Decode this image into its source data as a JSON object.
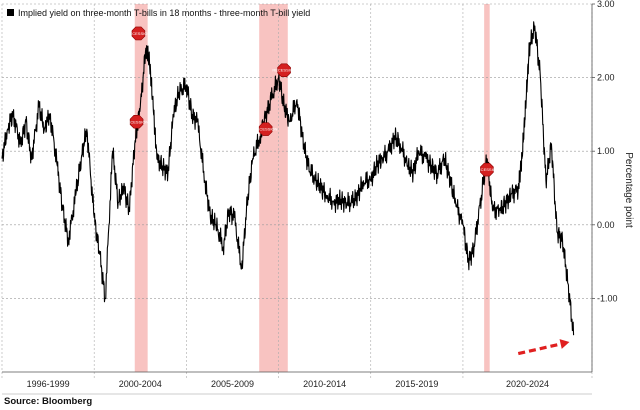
{
  "chart_data": {
    "type": "line",
    "title": "",
    "legend": "Implied yield on three-month T-bills in 18 months - three-month T-bill yield",
    "ylabel": "Percentage point",
    "xlabel": "",
    "source": "Source: Bloomberg",
    "xlim": [
      1994.0,
      2026.0
    ],
    "ylim": [
      -2.0,
      3.0
    ],
    "yticks": [
      -1.0,
      0.0,
      1.0,
      2.0,
      3.0
    ],
    "ytick_labels": [
      "-1.00",
      "0.00",
      "1.00",
      "2.00",
      "3.00"
    ],
    "period_boundaries": [
      1994.0,
      1999.0,
      2004.0,
      2009.0,
      2014.0,
      2019.0,
      2026.0
    ],
    "period_labels": [
      "1996-1999",
      "2000-2004",
      "2005-2009",
      "2010-2014",
      "2015-2019",
      "2020-2024"
    ],
    "recessions": [
      [
        2001.2,
        2001.9
      ],
      [
        2007.95,
        2009.5
      ],
      [
        2020.15,
        2020.45
      ]
    ],
    "markers": [
      {
        "x": 2001.4,
        "y": 2.6,
        "label": "RECESSION"
      },
      {
        "x": 2001.3,
        "y": 1.4,
        "label": "RECESSION"
      },
      {
        "x": 2008.3,
        "y": 1.3,
        "label": "RECESSION"
      },
      {
        "x": 2009.3,
        "y": 2.1,
        "label": "RECESSION"
      },
      {
        "x": 2020.3,
        "y": 0.75,
        "label": "RECESSION"
      }
    ],
    "series": [
      {
        "name": "Implied yield on three-month T-bills in 18 months - three-month T-bill yield",
        "color": "#000000",
        "x": [
          1994.0,
          1994.3,
          1994.6,
          1995.0,
          1995.3,
          1995.6,
          1996.0,
          1996.3,
          1996.6,
          1997.0,
          1997.3,
          1997.6,
          1998.0,
          1998.3,
          1998.6,
          1999.0,
          1999.3,
          1999.6,
          2000.0,
          2000.3,
          2000.6,
          2000.9,
          2001.2,
          2001.5,
          2001.8,
          2002.0,
          2002.2,
          2002.4,
          2002.7,
          2003.0,
          2003.3,
          2003.6,
          2004.0,
          2004.3,
          2004.6,
          2005.0,
          2005.3,
          2005.6,
          2006.0,
          2006.3,
          2006.6,
          2007.0,
          2007.3,
          2007.6,
          2008.0,
          2008.3,
          2008.6,
          2009.0,
          2009.3,
          2009.6,
          2010.0,
          2010.3,
          2010.6,
          2011.0,
          2011.3,
          2011.6,
          2012.0,
          2012.3,
          2012.6,
          2013.0,
          2013.3,
          2013.6,
          2014.0,
          2014.3,
          2014.6,
          2015.0,
          2015.3,
          2015.6,
          2016.0,
          2016.3,
          2016.6,
          2017.0,
          2017.3,
          2017.6,
          2018.0,
          2018.3,
          2018.6,
          2019.0,
          2019.3,
          2019.6,
          2020.0,
          2020.3,
          2020.6,
          2021.0,
          2021.3,
          2021.6,
          2022.0,
          2022.2,
          2022.4,
          2022.6,
          2022.9,
          2023.2,
          2023.5,
          2023.8,
          2024.1,
          2024.4,
          2024.7,
          2025.0
        ],
        "values": [
          0.9,
          1.3,
          1.5,
          1.1,
          1.4,
          0.9,
          1.6,
          1.3,
          1.5,
          0.8,
          0.2,
          -0.2,
          0.4,
          0.9,
          1.3,
          0.1,
          -0.4,
          -1.0,
          1.0,
          0.3,
          0.5,
          0.2,
          1.1,
          1.6,
          2.4,
          2.2,
          1.6,
          0.9,
          0.8,
          0.7,
          1.5,
          1.8,
          1.9,
          1.5,
          1.4,
          0.6,
          0.1,
          0.0,
          -0.3,
          0.2,
          0.1,
          -0.6,
          0.3,
          0.9,
          1.2,
          1.5,
          1.7,
          2.0,
          1.6,
          1.4,
          1.7,
          1.2,
          0.8,
          0.6,
          0.5,
          0.4,
          0.3,
          0.35,
          0.3,
          0.3,
          0.4,
          0.6,
          0.6,
          0.8,
          0.9,
          1.0,
          1.2,
          1.1,
          0.8,
          0.7,
          1.0,
          0.9,
          0.8,
          0.7,
          0.9,
          0.6,
          0.3,
          0.0,
          -0.5,
          -0.3,
          0.4,
          0.9,
          0.2,
          0.2,
          0.3,
          0.4,
          0.5,
          0.9,
          1.6,
          2.4,
          2.7,
          2.0,
          0.6,
          1.1,
          -0.1,
          -0.2,
          -0.8,
          -1.5
        ]
      }
    ]
  }
}
